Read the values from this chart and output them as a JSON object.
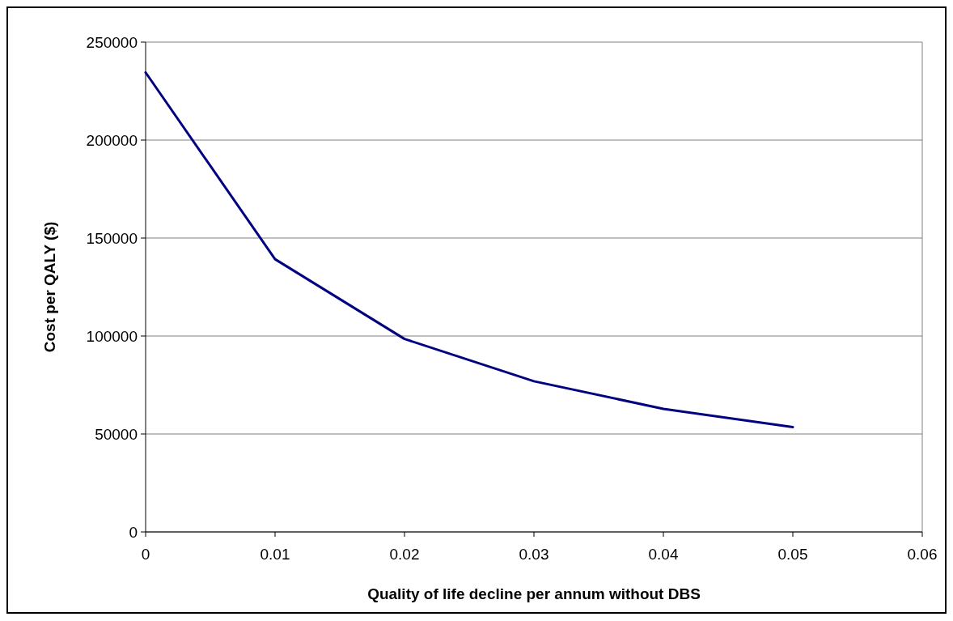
{
  "chart_data": {
    "type": "line",
    "xlabel": "Quality of life decline per annum without DBS",
    "ylabel": "Cost per QALY ($)",
    "x": [
      0,
      0.01,
      0.02,
      0.03,
      0.04,
      0.05
    ],
    "series": [
      {
        "color": "#000080",
        "values": [
          234500,
          139200,
          98500,
          76900,
          62800,
          53500
        ]
      }
    ],
    "xlim": [
      0,
      0.06
    ],
    "xticks": [
      0,
      0.01,
      0.02,
      0.03,
      0.04,
      0.05,
      0.06
    ],
    "ylim": [
      0,
      250000
    ],
    "yticks": [
      0,
      50000,
      100000,
      150000,
      200000,
      250000
    ],
    "grid": "y",
    "marker": "none",
    "line_style": "solid"
  }
}
